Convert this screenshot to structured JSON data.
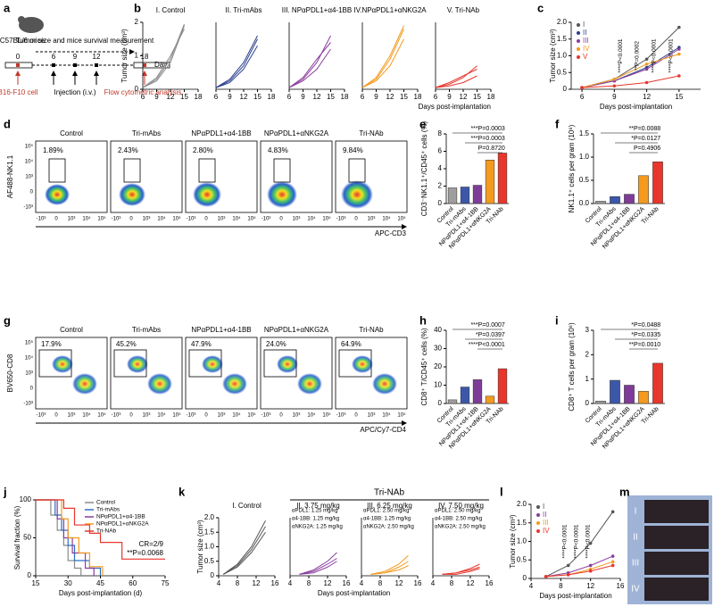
{
  "panel_labels": [
    "a",
    "b",
    "c",
    "d",
    "e",
    "f",
    "g",
    "h",
    "i",
    "j",
    "k",
    "l",
    "m"
  ],
  "schematic": {
    "mouse": "C57BL/6 mice",
    "measure": "Tumor size and mice survival measurement",
    "days": [
      "0",
      "6",
      "9",
      "12",
      "18"
    ],
    "day_unit": "Day",
    "cell": "B16-F10 cell",
    "injection": "Injection (i.v.)",
    "flow": "Flow cytometric analysis"
  },
  "flow_d": {
    "names": [
      "Control",
      "Tri-mAbs",
      "NPαPDL1+α4-1BB",
      "NPαPDL1+αNKG2A",
      "Tri-NAb"
    ],
    "percents": [
      "1.89%",
      "2.43%",
      "2.80%",
      "4.83%",
      "9.84%"
    ],
    "y_label": "AF488-NK1.1",
    "x_label": "APC-CD3",
    "ticks": [
      "-10³",
      "0",
      "10³",
      "10⁴",
      "10⁵"
    ]
  },
  "flow_g": {
    "names": [
      "Control",
      "Tri-mAbs",
      "NPαPDL1+α4-1BB",
      "NPαPDL1+αNKG2A",
      "Tri-NAb"
    ],
    "percents": [
      "17.9%",
      "45.2%",
      "47.9%",
      "24.0%",
      "64.9%"
    ],
    "y_label": "BV650-CD8",
    "x_label": "APC/Cy7-CD4",
    "ticks": [
      "-10³",
      "0",
      "10³",
      "10⁴",
      "10⁵"
    ]
  },
  "k_group": "Tri-NAb",
  "photo": {
    "rows": [
      "I",
      "II",
      "III",
      "IV"
    ]
  },
  "chart_data": [
    {
      "type": "line",
      "title": "I. Control",
      "ylabel": "Tumor size (cm³)",
      "x": [
        6,
        9,
        12,
        15
      ],
      "xlim": [
        6,
        18
      ],
      "xticks": [
        6,
        9,
        12,
        15,
        18
      ],
      "ylim": [
        0,
        2
      ],
      "yticks": [
        0,
        1,
        2
      ],
      "series": [
        {
          "color": "#8a8a8a",
          "values": [
            0.05,
            0.3,
            0.9,
            1.95
          ]
        },
        {
          "color": "#8a8a8a",
          "values": [
            0.05,
            0.35,
            1.0,
            1.8
          ]
        },
        {
          "color": "#8a8a8a",
          "values": [
            0.05,
            0.25,
            0.8,
            1.9
          ]
        }
      ]
    },
    {
      "type": "line",
      "title": "II. Tri-mAbs",
      "x": [
        6,
        9,
        12,
        15
      ],
      "xlim": [
        6,
        18
      ],
      "xticks": [
        6,
        9,
        12,
        15,
        18
      ],
      "ylim": [
        0,
        2
      ],
      "series": [
        {
          "color": "#2b3f8f",
          "values": [
            0.05,
            0.25,
            0.7,
            1.5
          ]
        },
        {
          "color": "#2b3f8f",
          "values": [
            0.05,
            0.2,
            0.6,
            1.3
          ]
        },
        {
          "color": "#2b3f8f",
          "values": [
            0.05,
            0.3,
            0.8,
            1.6
          ]
        }
      ]
    },
    {
      "type": "line",
      "title": "III. NPαPDL1+α4-1BB",
      "x": [
        6,
        9,
        12,
        15
      ],
      "xlim": [
        6,
        18
      ],
      "xticks": [
        6,
        9,
        12,
        15,
        18
      ],
      "ylim": [
        0,
        2
      ],
      "series": [
        {
          "color": "#8a3d9e",
          "values": [
            0.05,
            0.3,
            0.8,
            1.6
          ]
        },
        {
          "color": "#8a3d9e",
          "values": [
            0.05,
            0.25,
            0.6,
            1.2
          ]
        },
        {
          "color": "#8a3d9e",
          "values": [
            0.05,
            0.35,
            0.9,
            1.4
          ]
        }
      ]
    },
    {
      "type": "line",
      "title": "IV.NPαPDL1+αNKG2A",
      "x": [
        6,
        9,
        12,
        15
      ],
      "xlim": [
        6,
        18
      ],
      "xticks": [
        6,
        9,
        12,
        15,
        18
      ],
      "ylim": [
        0,
        2
      ],
      "series": [
        {
          "color": "#f39a1f",
          "values": [
            0.05,
            0.3,
            0.9,
            1.8
          ]
        },
        {
          "color": "#f39a1f",
          "values": [
            0.05,
            0.25,
            0.7,
            1.5
          ]
        },
        {
          "color": "#f39a1f",
          "values": [
            0.05,
            0.35,
            1.0,
            1.9
          ]
        }
      ]
    },
    {
      "type": "line",
      "title": "V. Tri-NAb",
      "xlabel": "Days post-implantation",
      "x": [
        6,
        9,
        12,
        15
      ],
      "xlim": [
        6,
        18
      ],
      "xticks": [
        6,
        9,
        12,
        15,
        18
      ],
      "ylim": [
        0,
        2
      ],
      "series": [
        {
          "color": "#e8362d",
          "values": [
            0.05,
            0.15,
            0.35,
            0.7
          ]
        },
        {
          "color": "#e8362d",
          "values": [
            0.05,
            0.1,
            0.2,
            0.4
          ]
        },
        {
          "color": "#e8362d",
          "values": [
            0.05,
            0.2,
            0.4,
            0.6
          ]
        }
      ]
    },
    {
      "type": "line",
      "markers": true,
      "xlabel": "Days post-implantation",
      "ylabel": "Tumor size (cm³)",
      "x": [
        6,
        9,
        12,
        15
      ],
      "xlim": [
        5,
        17
      ],
      "xticks": [
        6,
        9,
        12,
        15
      ],
      "ylim": [
        0,
        2
      ],
      "yticks": [
        0,
        {
          "value": 0.5,
          "label": "0.5"
        },
        {
          "value": 1,
          "label": "1.0"
        },
        {
          "value": 1.5,
          "label": "1.5"
        },
        {
          "value": 2,
          "label": "2.0"
        }
      ],
      "series": [
        {
          "name": "I",
          "color": "#555555",
          "values": [
            0.05,
            0.3,
            0.9,
            1.85
          ]
        },
        {
          "name": "II",
          "color": "#2b3f8f",
          "values": [
            0.05,
            0.25,
            0.65,
            1.25
          ]
        },
        {
          "name": "III",
          "color": "#8a3d9e",
          "values": [
            0.05,
            0.25,
            0.6,
            1.2
          ]
        },
        {
          "name": "IV",
          "color": "#f39a1f",
          "values": [
            0.05,
            0.3,
            0.75,
            1.05
          ]
        },
        {
          "name": "V",
          "color": "#e8362d",
          "values": [
            0.05,
            0.1,
            0.2,
            0.4
          ]
        }
      ],
      "annotations": [
        "****P<0.0001",
        "**P=0.0002",
        "****P<0.0001",
        "****P<0.0001"
      ]
    },
    {
      "type": "bar",
      "ylabel": "CD3⁻NK1.1⁺/CD45⁺ cells (%)",
      "categories": [
        "Control",
        "Tri-mAbs",
        "NPαPDL1+α4-1BB",
        "NPαPDL1+αNKG2A",
        "Tri-NAb"
      ],
      "values": [
        1.8,
        1.9,
        2.1,
        5.0,
        5.8
      ],
      "colors": [
        "#9e9e9e",
        "#3d57a8",
        "#7e3c98",
        "#f39a1f",
        "#e8362d"
      ],
      "ylim": [
        0,
        8
      ],
      "yticks": [
        0,
        2,
        4,
        6,
        8
      ],
      "annotations": [
        "***P=0.0003",
        "***P=0.0003",
        "P=0.8720"
      ]
    },
    {
      "type": "bar",
      "ylabel": "NK1.1⁺ cells per gram (10⁶)",
      "categories": [
        "Control",
        "Tri-mAbs",
        "NPαPDL1+α4-1BB",
        "NPαPDL1+αNKG2A",
        "Tri-NAb"
      ],
      "values": [
        0.05,
        0.15,
        0.2,
        0.6,
        0.9
      ],
      "colors": [
        "#9e9e9e",
        "#3d57a8",
        "#7e3c98",
        "#f39a1f",
        "#e8362d"
      ],
      "ylim": [
        0,
        1.5
      ],
      "yticks": [
        {
          "value": 0,
          "label": "0.0"
        },
        0.5,
        {
          "value": 1,
          "label": "1.0"
        },
        1.5
      ],
      "annotations": [
        "**P=0.0088",
        "*P=0.0127",
        "P=0.4906"
      ]
    },
    {
      "type": "bar",
      "ylabel": "CD8⁺ T/CD45⁺ cells (%)",
      "categories": [
        "Control",
        "Tri-mAbs",
        "NPαPDL1+α4-1BB",
        "NPαPDL1+αNKG2A",
        "Tri-NAb"
      ],
      "values": [
        2,
        9,
        13,
        4,
        19
      ],
      "colors": [
        "#9e9e9e",
        "#3d57a8",
        "#7e3c98",
        "#f39a1f",
        "#e8362d"
      ],
      "ylim": [
        0,
        40
      ],
      "yticks": [
        0,
        10,
        20,
        30,
        40
      ],
      "annotations": [
        "***P=0.0007",
        "*P=0.0397",
        "****P<0.0001"
      ]
    },
    {
      "type": "bar",
      "ylabel": "CD8⁺ T cells per gram (10⁶)",
      "categories": [
        "Control",
        "Tri-mAbs",
        "NPαPDL1+α4-1BB",
        "NPαPDL1+αNKG2A",
        "Tri-NAb"
      ],
      "values": [
        0.1,
        0.95,
        0.75,
        0.5,
        1.65
      ],
      "colors": [
        "#9e9e9e",
        "#3d57a8",
        "#7e3c98",
        "#f39a1f",
        "#e8362d"
      ],
      "ylim": [
        0,
        3
      ],
      "yticks": [
        0,
        1,
        2,
        3
      ],
      "annotations": [
        "*P=0.0488",
        "*P=0.0335",
        "**P=0.0010"
      ]
    },
    {
      "type": "step",
      "xlabel": "Days post-implantation (d)",
      "ylabel": "Survival fraction (%)",
      "xlim": [
        15,
        75
      ],
      "xticks": [
        15,
        30,
        45,
        60,
        75
      ],
      "ylim": [
        0,
        100
      ],
      "yticks": [
        0,
        50,
        100
      ],
      "series": [
        {
          "name": "Control",
          "color": "#8a8a8a",
          "x": [
            15,
            22,
            25,
            28,
            30,
            33,
            36
          ],
          "values": [
            100,
            80,
            60,
            40,
            20,
            10,
            0
          ]
        },
        {
          "name": "Tri-mAbs",
          "color": "#2b6fc4",
          "x": [
            15,
            24,
            27,
            30,
            33,
            40,
            45
          ],
          "values": [
            100,
            80,
            60,
            40,
            20,
            10,
            0
          ]
        },
        {
          "name": "NPαPDL1+α4-1BB",
          "color": "#8a3d9e",
          "x": [
            15,
            25,
            28,
            32,
            38,
            42
          ],
          "values": [
            100,
            75,
            50,
            30,
            10,
            0
          ]
        },
        {
          "name": "NPαPDL1+αNKG2A",
          "color": "#f39a1f",
          "x": [
            15,
            27,
            30,
            35,
            40,
            46
          ],
          "values": [
            100,
            75,
            50,
            30,
            12,
            0
          ]
        },
        {
          "name": "Tri-NAb",
          "color": "#e8362d",
          "x": [
            15,
            28,
            33,
            40,
            45,
            55,
            75
          ],
          "values": [
            100,
            89,
            67,
            56,
            44,
            22,
            22
          ]
        }
      ],
      "annotations": [
        "CR=2/9",
        "**P=0.0068"
      ]
    },
    {
      "type": "line",
      "title": "I. Control",
      "ylabel": "Tumor size (cm³)",
      "x": [
        5,
        8,
        11,
        14
      ],
      "xlim": [
        4,
        16
      ],
      "xticks": [
        4,
        8,
        12,
        16
      ],
      "ylim": [
        0,
        2
      ],
      "yticks": [
        0,
        {
          "value": 0.5,
          "label": "0.5"
        },
        {
          "value": 1,
          "label": "1.0"
        },
        {
          "value": 1.5,
          "label": "1.5"
        },
        {
          "value": 2,
          "label": "2.0"
        }
      ],
      "series": [
        {
          "color": "#555555",
          "values": [
            0.05,
            0.4,
            1.0,
            1.9
          ]
        },
        {
          "color": "#555555",
          "values": [
            0.05,
            0.35,
            0.9,
            1.7
          ]
        },
        {
          "color": "#555555",
          "values": [
            0.05,
            0.3,
            0.8,
            1.5
          ]
        }
      ]
    },
    {
      "type": "line",
      "title": "II. 3.75 mg/kg",
      "notes": [
        "αPDL1: 1.25 mg/kg",
        "α4-1BB: 1.25 mg/kg",
        "αNKG2A: 1.25 mg/kg"
      ],
      "xlabel": "Days post-implantation",
      "x": [
        6,
        9,
        12,
        14
      ],
      "xlim": [
        4,
        16
      ],
      "xticks": [
        4,
        8,
        12,
        16
      ],
      "ylim": [
        0,
        2
      ],
      "series": [
        {
          "color": "#8a3d9e",
          "values": [
            0.05,
            0.2,
            0.5,
            0.8
          ]
        },
        {
          "color": "#8a3d9e",
          "values": [
            0.05,
            0.15,
            0.4,
            0.6
          ]
        },
        {
          "color": "#8a3d9e",
          "values": [
            0.05,
            0.1,
            0.3,
            0.5
          ]
        }
      ]
    },
    {
      "type": "line",
      "title": "III. 6.25 mg/kg",
      "notes": [
        "αPDL1: 2.50 mg/kg",
        "α4-1BB: 1.25 mg/kg",
        "αNKG2A: 2.50 mg/kg"
      ],
      "x": [
        6,
        9,
        12,
        14
      ],
      "xlim": [
        4,
        16
      ],
      "xticks": [
        4,
        8,
        12,
        16
      ],
      "ylim": [
        0,
        2
      ],
      "series": [
        {
          "color": "#f39a1f",
          "values": [
            0.05,
            0.15,
            0.4,
            0.7
          ]
        },
        {
          "color": "#f39a1f",
          "values": [
            0.05,
            0.1,
            0.3,
            0.5
          ]
        },
        {
          "color": "#f39a1f",
          "values": [
            0.05,
            0.1,
            0.2,
            0.35
          ]
        }
      ]
    },
    {
      "type": "line",
      "title": "IV. 7.50 mg/kg",
      "notes": [
        "αPDL1: 2.50 mg/kg",
        "α4-1BB: 2.50 mg/kg",
        "αNKG2A: 2.50 mg/kg"
      ],
      "x": [
        6,
        9,
        12,
        14
      ],
      "xlim": [
        4,
        16
      ],
      "xticks": [
        4,
        8,
        12,
        16
      ],
      "ylim": [
        0,
        2
      ],
      "series": [
        {
          "color": "#e8362d",
          "values": [
            0.05,
            0.1,
            0.25,
            0.4
          ]
        },
        {
          "color": "#e8362d",
          "values": [
            0.05,
            0.1,
            0.2,
            0.3
          ]
        },
        {
          "color": "#e8362d",
          "values": [
            0.05,
            0.05,
            0.15,
            0.25
          ]
        }
      ]
    },
    {
      "type": "line",
      "markers": true,
      "xlabel": "Days post-implantation",
      "ylabel": "Tumor size (cm³)",
      "x": [
        6,
        9,
        12,
        15
      ],
      "xlim": [
        4,
        16
      ],
      "xticks": [
        4,
        8,
        12,
        16
      ],
      "ylim": [
        0,
        2
      ],
      "yticks": [
        0,
        {
          "value": 0.5,
          "label": "0.5"
        },
        {
          "value": 1,
          "label": "1.0"
        },
        {
          "value": 1.5,
          "label": "1.5"
        },
        {
          "value": 2,
          "label": "2.0"
        }
      ],
      "series": [
        {
          "name": "I",
          "color": "#555555",
          "values": [
            0.05,
            0.35,
            0.95,
            1.8
          ]
        },
        {
          "name": "II",
          "color": "#8a3d9e",
          "values": [
            0.05,
            0.15,
            0.35,
            0.6
          ]
        },
        {
          "name": "III",
          "color": "#f39a1f",
          "values": [
            0.05,
            0.1,
            0.25,
            0.45
          ]
        },
        {
          "name": "IV",
          "color": "#e8362d",
          "values": [
            0.05,
            0.1,
            0.2,
            0.35
          ]
        }
      ],
      "annotations": [
        "****P<0.0001",
        "****P<0.0001",
        "****P<0.0001"
      ]
    }
  ]
}
